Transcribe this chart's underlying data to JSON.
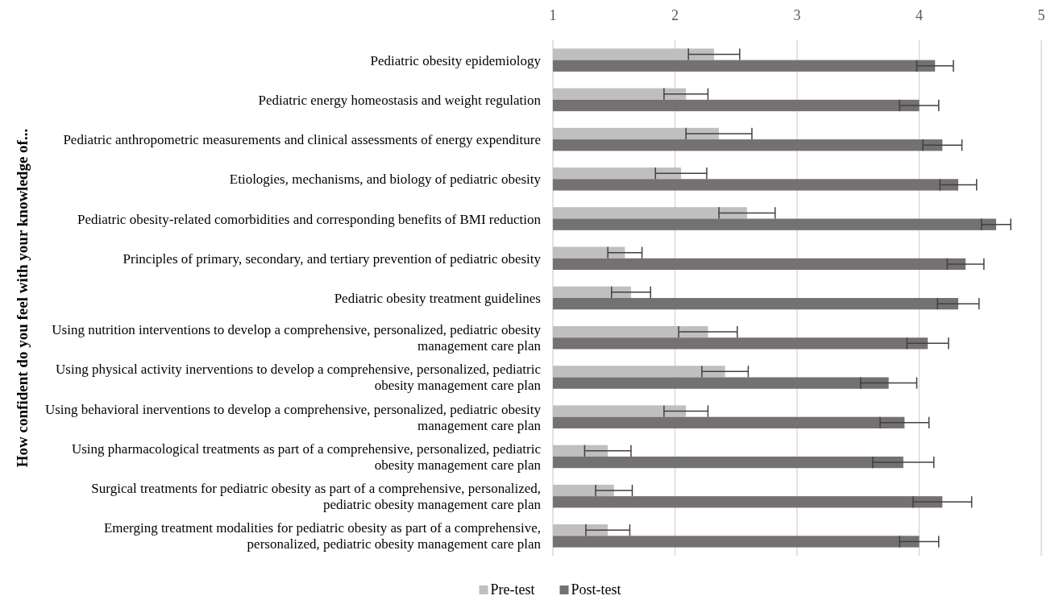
{
  "chart_data": {
    "type": "bar",
    "orientation": "horizontal",
    "ylabel": "How confident do you feel with your knowledge of...",
    "categories": [
      "Pediatric obesity epidemiology",
      "Pediatric energy homeostasis and weight regulation",
      "Pediatric anthropometric measurements and clinical assessments of energy expenditure",
      "Etiologies, mechanisms, and biology of pediatric obesity",
      "Pediatric obesity-related comorbidities and corresponding benefits of BMI reduction",
      "Principles of primary, secondary, and tertiary prevention of pediatric obesity",
      "Pediatric obesity treatment guidelines",
      "Using nutrition interventions to develop a comprehensive, personalized, pediatric obesity management care plan",
      "Using physical activity inerventions to develop a comprehensive, personalized, pediatric obesity management care plan",
      "Using behavioral inerventions to develop a comprehensive, personalized, pediatric obesity management care plan",
      "Using pharmacological treatments as part of a comprehensive, personalized, pediatric obesity management care plan",
      "Surgical treatments for pediatric obesity as part of a comprehensive, personalized, pediatric obesity management care plan",
      "Emerging treatment modalities for pediatric obesity as part of a comprehensive, personalized, pediatric obesity management care plan"
    ],
    "series": [
      {
        "name": "Pre-test",
        "color": "#bfbfbf",
        "values": [
          2.32,
          2.09,
          2.36,
          2.05,
          2.59,
          1.59,
          1.64,
          2.27,
          2.41,
          2.09,
          1.45,
          1.5,
          1.45
        ],
        "errors": [
          0.21,
          0.18,
          0.27,
          0.21,
          0.23,
          0.14,
          0.16,
          0.24,
          0.19,
          0.18,
          0.19,
          0.15,
          0.18
        ]
      },
      {
        "name": "Post-test",
        "color": "#757171",
        "values": [
          4.13,
          4.0,
          4.19,
          4.32,
          4.63,
          4.38,
          4.32,
          4.07,
          3.75,
          3.88,
          3.87,
          4.19,
          4.0
        ],
        "errors": [
          0.15,
          0.16,
          0.16,
          0.15,
          0.12,
          0.15,
          0.17,
          0.17,
          0.23,
          0.2,
          0.25,
          0.24,
          0.16
        ]
      }
    ],
    "xlim": [
      1,
      5
    ],
    "xticks": [
      1,
      2,
      3,
      4,
      5
    ],
    "grid": "x",
    "legend": "bottom"
  }
}
